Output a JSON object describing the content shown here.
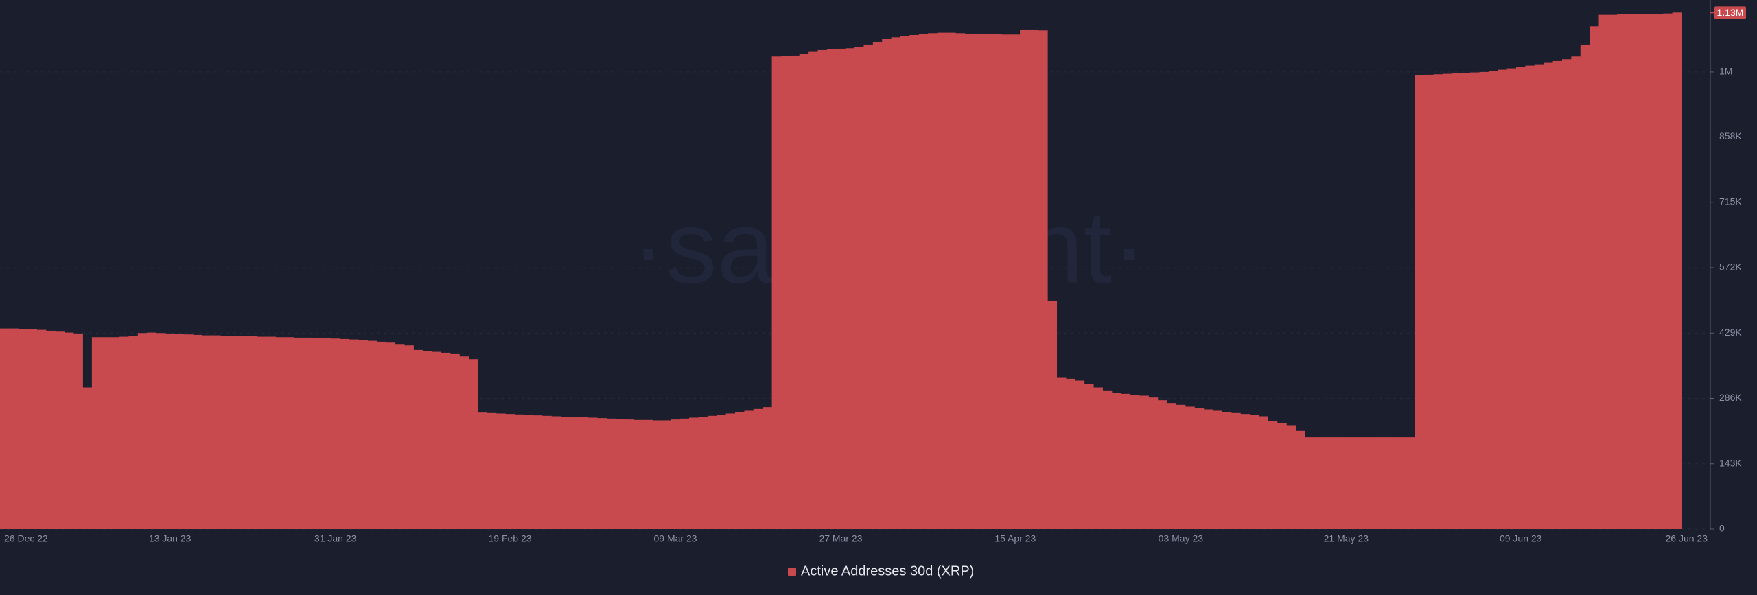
{
  "chart_data": {
    "type": "bar",
    "watermark": "·santiment·",
    "current_value_label": "1.13M",
    "categories": [
      "26 Dec 22",
      null,
      null,
      null,
      null,
      null,
      null,
      null,
      null,
      null,
      null,
      null,
      null,
      null,
      null,
      null,
      null,
      null,
      "13 Jan 23",
      null,
      null,
      null,
      null,
      null,
      null,
      null,
      null,
      null,
      null,
      null,
      null,
      null,
      null,
      null,
      null,
      null,
      "31 Jan 23",
      null,
      null,
      null,
      null,
      null,
      null,
      null,
      null,
      null,
      null,
      null,
      null,
      null,
      null,
      null,
      null,
      null,
      null,
      "19 Feb 23",
      null,
      null,
      null,
      null,
      null,
      null,
      null,
      null,
      null,
      null,
      null,
      null,
      null,
      null,
      null,
      null,
      null,
      "09 Mar 23",
      null,
      null,
      null,
      null,
      null,
      null,
      null,
      null,
      null,
      null,
      null,
      null,
      null,
      null,
      null,
      null,
      null,
      "27 Mar 23",
      null,
      null,
      null,
      null,
      null,
      null,
      null,
      null,
      null,
      null,
      null,
      null,
      null,
      null,
      null,
      null,
      null,
      null,
      "15 Apr 23",
      null,
      null,
      null,
      null,
      null,
      null,
      null,
      null,
      null,
      null,
      null,
      null,
      null,
      null,
      null,
      null,
      null,
      "03 May 23",
      null,
      null,
      null,
      null,
      null,
      null,
      null,
      null,
      null,
      null,
      null,
      null,
      null,
      null,
      null,
      null,
      null,
      "21 May 23",
      null,
      null,
      null,
      null,
      null,
      null,
      null,
      null,
      null,
      null,
      null,
      null,
      null,
      null,
      null,
      null,
      null,
      null,
      "09 Jun 23",
      null,
      null,
      null,
      null,
      null,
      null,
      null,
      null,
      null,
      null,
      null,
      null,
      null,
      null,
      null,
      null,
      "26 Jun 23"
    ],
    "series": [
      {
        "name": "Active Addresses 30d (XRP)",
        "color": "#c94a4e",
        "values": [
          439000,
          439000,
          438000,
          437000,
          436000,
          434000,
          432000,
          430000,
          428000,
          310000,
          420000,
          420000,
          420000,
          421000,
          422000,
          429000,
          430000,
          429000,
          428000,
          427000,
          426000,
          425000,
          424000,
          424000,
          423000,
          423000,
          422000,
          422000,
          421000,
          421000,
          420000,
          420000,
          419000,
          419000,
          418000,
          418000,
          417000,
          416000,
          415000,
          414000,
          412000,
          410000,
          408000,
          405000,
          402000,
          392000,
          390000,
          388000,
          386000,
          383000,
          378000,
          372000,
          255000,
          254000,
          253000,
          252000,
          251000,
          250000,
          249000,
          248000,
          247000,
          246000,
          246000,
          245000,
          244000,
          243000,
          242000,
          241000,
          240000,
          239000,
          239000,
          238000,
          238000,
          240000,
          242000,
          244000,
          246000,
          248000,
          250000,
          253000,
          256000,
          259000,
          263000,
          267000,
          1034000,
          1035000,
          1036000,
          1040000,
          1044000,
          1048000,
          1050000,
          1051000,
          1052000,
          1055000,
          1060000,
          1066000,
          1072000,
          1076000,
          1079000,
          1081000,
          1083000,
          1085000,
          1086000,
          1086000,
          1085000,
          1084000,
          1084000,
          1083000,
          1083000,
          1082000,
          1082000,
          1093000,
          1093000,
          1091000,
          500000,
          331000,
          329000,
          325000,
          318000,
          310000,
          302000,
          298000,
          296000,
          294000,
          292000,
          288000,
          282000,
          276000,
          272000,
          268000,
          265000,
          262000,
          259000,
          256000,
          254000,
          252000,
          250000,
          247000,
          236000,
          232000,
          226000,
          215000,
          201000,
          201000,
          201000,
          201000,
          201000,
          201000,
          201000,
          201000,
          201000,
          201000,
          201000,
          201000,
          993000,
          994000,
          995000,
          996000,
          997000,
          998000,
          999000,
          1000000,
          1002000,
          1005000,
          1008000,
          1011000,
          1014000,
          1017000,
          1020000,
          1024000,
          1028000,
          1034000,
          1060000,
          1100000,
          1125000,
          1125000,
          1126000,
          1126000,
          1126000,
          1127000,
          1127000,
          1128000,
          1130000
        ]
      }
    ],
    "ylim": [
      0,
      1150000
    ],
    "yticks": [
      0,
      {
        "value": 143000,
        "label": "143K"
      },
      {
        "value": 286000,
        "label": "286K"
      },
      {
        "value": 429000,
        "label": "429K"
      },
      {
        "value": 572000,
        "label": "572K"
      },
      {
        "value": 715000,
        "label": "715K"
      },
      {
        "value": 858000,
        "label": "858K"
      },
      {
        "value": 1000000,
        "label": "1M"
      }
    ],
    "grid": true
  }
}
